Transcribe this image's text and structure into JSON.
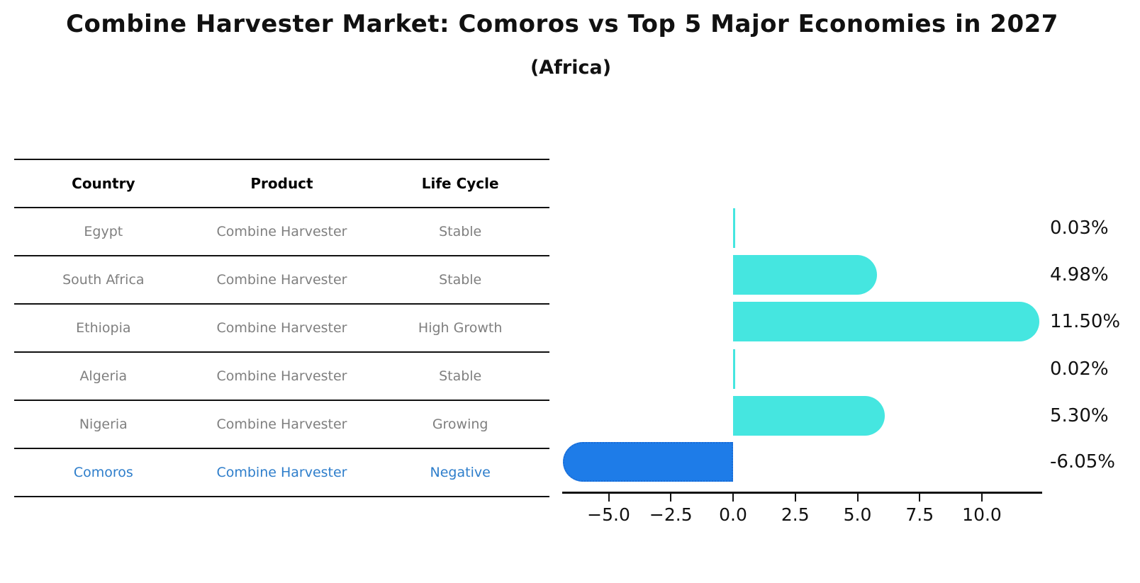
{
  "title": "Combine Harvester Market: Comoros vs Top 5 Major Economies in 2027",
  "subtitle": "(Africa)",
  "table": {
    "headers": [
      "Country",
      "Product",
      "Life Cycle"
    ],
    "rows": [
      {
        "country": "Egypt",
        "product": "Combine Harvester",
        "life_cycle": "Stable",
        "highlight": false
      },
      {
        "country": "South Africa",
        "product": "Combine Harvester",
        "life_cycle": "Stable",
        "highlight": false
      },
      {
        "country": "Ethiopia",
        "product": "Combine Harvester",
        "life_cycle": "High Growth",
        "highlight": false
      },
      {
        "country": "Algeria",
        "product": "Combine Harvester",
        "life_cycle": "Stable",
        "highlight": false
      },
      {
        "country": "Nigeria",
        "product": "Combine Harvester",
        "life_cycle": "Growing",
        "highlight": false
      },
      {
        "country": "Comoros",
        "product": "Combine Harvester",
        "life_cycle": "Negative",
        "highlight": true
      }
    ]
  },
  "chart_data": {
    "type": "bar",
    "orientation": "horizontal",
    "title": "Combine Harvester Market: Comoros vs Top 5 Major Economies in 2027",
    "subtitle": "(Africa)",
    "categories": [
      "Egypt",
      "South Africa",
      "Ethiopia",
      "Algeria",
      "Nigeria",
      "Comoros"
    ],
    "values": [
      0.03,
      4.98,
      11.5,
      0.02,
      5.3,
      -6.05
    ],
    "value_labels": [
      "0.03%",
      "4.98%",
      "11.50%",
      "0.02%",
      "5.30%",
      "-6.05%"
    ],
    "unit": "percent",
    "x_ticks": [
      {
        "value": -5.0,
        "label": "−5.0"
      },
      {
        "value": -2.5,
        "label": "−2.5"
      },
      {
        "value": 0.0,
        "label": "0.0"
      },
      {
        "value": 2.5,
        "label": "2.5"
      },
      {
        "value": 5.0,
        "label": "5.0"
      },
      {
        "value": 7.5,
        "label": "7.5"
      },
      {
        "value": 10.0,
        "label": "10.0"
      }
    ],
    "xlim": [
      -6.9,
      12.45
    ],
    "grid": false,
    "legend": false,
    "colors": {
      "positive_bar": "#45e6e0",
      "negative_bar": "#1e7ce8",
      "negative_bar_border": "#1a6cd6",
      "highlight_text": "#2e7ecb",
      "table_text": "#7f7f7f",
      "axis_text": "#111111"
    }
  }
}
